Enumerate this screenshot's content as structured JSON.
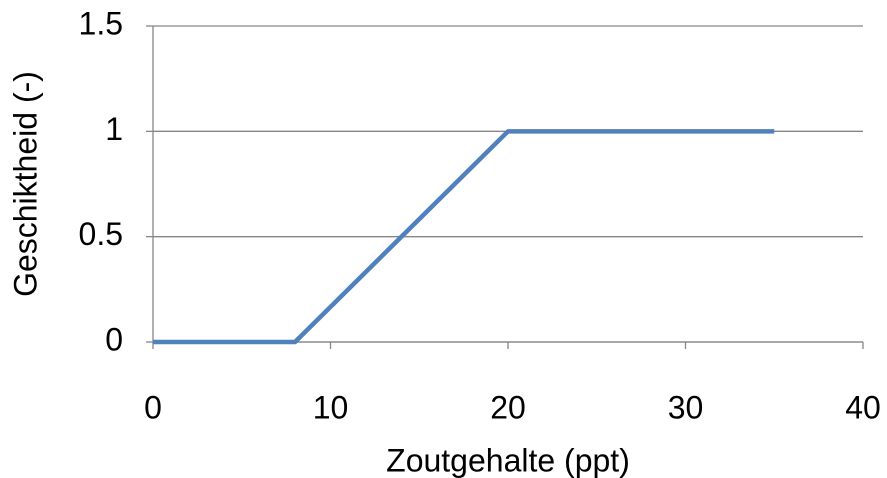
{
  "chart_data": {
    "type": "line",
    "x": [
      0,
      8,
      20,
      35
    ],
    "series": [
      {
        "color": "#4f81bd",
        "values": [
          0,
          0,
          1,
          1
        ]
      }
    ],
    "xlim": [
      0,
      40
    ],
    "xticks": [
      0,
      10,
      20,
      30,
      40
    ],
    "ylim": [
      0,
      1.5
    ],
    "yticks": [
      0,
      0.5,
      1,
      1.5
    ],
    "xlabel": "Zoutgehalte (ppt)",
    "ylabel": "Geschiktheid (-)",
    "grid": true
  }
}
